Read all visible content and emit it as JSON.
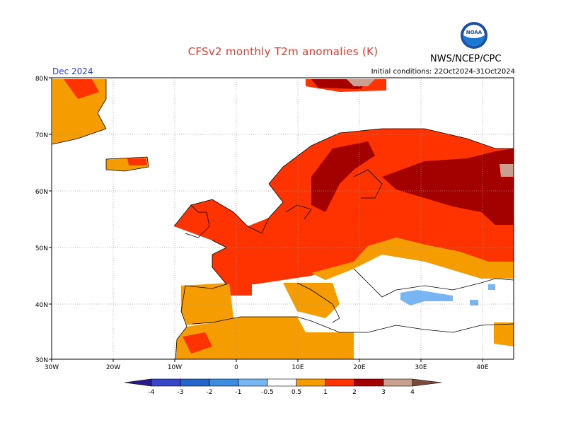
{
  "title": "CFSv2 monthly T2m anomalies (K)",
  "agency": "NWS/NCEP/CPC",
  "logo_text": "NOAA",
  "period": "Dec 2024",
  "initial_conditions": "Initial conditions: 22Oct2024-31Oct2024",
  "map": {
    "lon_ticks": [
      "30W",
      "20W",
      "10W",
      "0",
      "10E",
      "20E",
      "30E",
      "40E"
    ],
    "lat_ticks": [
      "30N",
      "40N",
      "50N",
      "60N",
      "70N",
      "80N"
    ],
    "lon_range": [
      -30,
      45
    ],
    "lat_range": [
      30,
      80
    ]
  },
  "colorbar": {
    "labels": [
      "-4",
      "-3",
      "-2",
      "-1",
      "-0.5",
      "0.5",
      "1",
      "2",
      "3",
      "4"
    ],
    "colors": [
      "#2a1a8a",
      "#3646c8",
      "#2565c9",
      "#3a8de0",
      "#77b6f2",
      "#ffffff",
      "#f59c00",
      "#ff3300",
      "#a30000",
      "#c9a08f",
      "#7a4a3a"
    ]
  }
}
